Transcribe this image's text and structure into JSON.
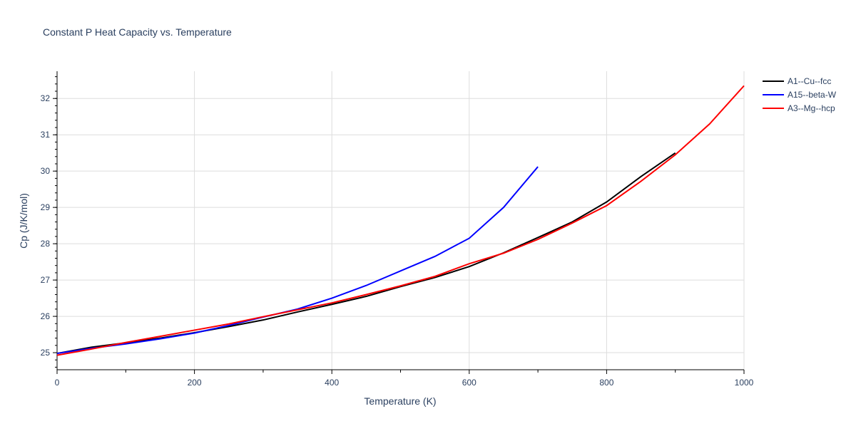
{
  "chart_data": {
    "type": "line",
    "title": "Constant P Heat Capacity vs. Temperature",
    "xlabel": "Temperature (K)",
    "ylabel": "Cp (J/K/mol)",
    "xlim": [
      0,
      1000
    ],
    "ylim": [
      24.53,
      32.75
    ],
    "xticks": [
      0,
      200,
      400,
      600,
      800,
      1000
    ],
    "yticks": [
      25,
      26,
      27,
      28,
      29,
      30,
      31,
      32
    ],
    "grid": true,
    "legend_position": "top-right",
    "series": [
      {
        "name": "A1--Cu--fcc",
        "color": "#000000",
        "x": [
          0,
          50,
          100,
          150,
          200,
          250,
          300,
          350,
          400,
          450,
          500,
          550,
          600,
          650,
          700,
          750,
          800,
          850,
          900
        ],
        "y": [
          24.98,
          25.15,
          25.27,
          25.4,
          25.55,
          25.72,
          25.9,
          26.12,
          26.33,
          26.55,
          26.82,
          27.07,
          27.37,
          27.75,
          28.17,
          28.6,
          29.15,
          29.85,
          30.5
        ]
      },
      {
        "name": "A15--beta-W",
        "color": "#0000ff",
        "x": [
          0,
          50,
          100,
          150,
          200,
          250,
          300,
          350,
          400,
          450,
          500,
          550,
          600,
          650,
          700
        ],
        "y": [
          24.98,
          25.12,
          25.24,
          25.38,
          25.54,
          25.75,
          25.98,
          26.2,
          26.5,
          26.85,
          27.25,
          27.65,
          28.15,
          29.0,
          30.12
        ]
      },
      {
        "name": "A3--Mg--hcp",
        "color": "#ff0000",
        "x": [
          0,
          50,
          100,
          150,
          200,
          250,
          300,
          350,
          400,
          450,
          500,
          550,
          600,
          650,
          700,
          750,
          800,
          850,
          900,
          950,
          1000
        ],
        "y": [
          24.93,
          25.1,
          25.28,
          25.45,
          25.62,
          25.79,
          25.99,
          26.18,
          26.37,
          26.6,
          26.84,
          27.1,
          27.45,
          27.74,
          28.12,
          28.57,
          29.05,
          29.72,
          30.45,
          31.3,
          32.35
        ]
      }
    ]
  }
}
